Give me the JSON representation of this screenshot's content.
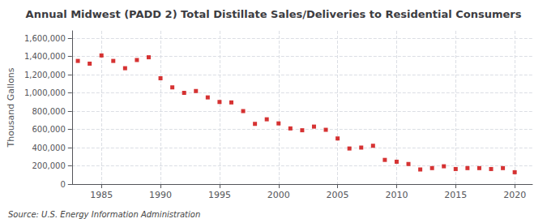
{
  "chart_data": {
    "type": "scatter",
    "title": "Annual Midwest (PADD 2) Total Distillate Sales/Deliveries to Residential Consumers",
    "ylabel": "Thousand Gallons",
    "source": "Source: U.S. Energy Information Administration",
    "color": "#CC0000",
    "marker": "square",
    "grid": true,
    "x": [
      1983,
      1984,
      1985,
      1986,
      1987,
      1988,
      1989,
      1990,
      1991,
      1992,
      1993,
      1994,
      1995,
      1996,
      1997,
      1998,
      1999,
      2000,
      2001,
      2002,
      2003,
      2004,
      2005,
      2006,
      2007,
      2008,
      2009,
      2010,
      2011,
      2012,
      2013,
      2014,
      2015,
      2016,
      2017,
      2018,
      2019,
      2020
    ],
    "values": [
      1350000,
      1320000,
      1410000,
      1350000,
      1270000,
      1360000,
      1390000,
      1160000,
      1060000,
      1000000,
      1020000,
      950000,
      900000,
      895000,
      800000,
      660000,
      710000,
      665000,
      610000,
      590000,
      630000,
      595000,
      500000,
      390000,
      400000,
      420000,
      265000,
      245000,
      220000,
      160000,
      175000,
      195000,
      165000,
      175000,
      175000,
      165000,
      175000,
      130000
    ],
    "xlim": [
      1982.5,
      2021.5
    ],
    "xticks": [
      1985,
      1990,
      1995,
      2000,
      2005,
      2010,
      2015,
      2020
    ],
    "ylim": [
      0,
      1680000
    ],
    "yticks": [
      0,
      {
        "value": 200000,
        "label": "200,000"
      },
      {
        "value": 400000,
        "label": "400,000"
      },
      {
        "value": 600000,
        "label": "600,000"
      },
      {
        "value": 800000,
        "label": "800,000"
      },
      {
        "value": 1000000,
        "label": "1,000,000"
      },
      {
        "value": 1200000,
        "label": "1,200,000"
      },
      {
        "value": 1400000,
        "label": "1,400,000"
      },
      {
        "value": 1600000,
        "label": "1,600,000"
      }
    ]
  }
}
